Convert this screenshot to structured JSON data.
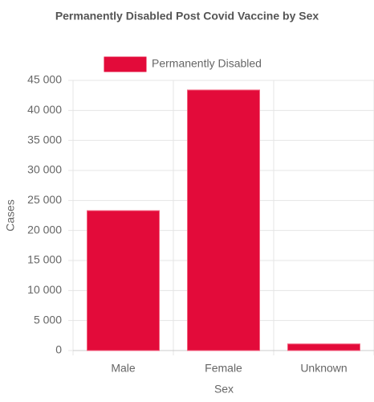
{
  "chart_data": {
    "type": "bar",
    "title": "Permanently Disabled Post Covid Vaccine by Sex",
    "x_label": "Sex",
    "y_label": "Cases",
    "categories": [
      "Male",
      "Female",
      "Unknown"
    ],
    "series": [
      {
        "name": "Permanently Disabled",
        "color": "#e30b3a",
        "values": [
          23300,
          43400,
          1100
        ]
      }
    ],
    "ylim": [
      0,
      45000
    ],
    "yticks": [
      0,
      {
        "value": 5000,
        "label": "5 000"
      },
      {
        "value": 10000,
        "label": "10 000"
      },
      {
        "value": 15000,
        "label": "15 000"
      },
      {
        "value": 20000,
        "label": "20 000"
      },
      {
        "value": 25000,
        "label": "25 000"
      },
      {
        "value": 30000,
        "label": "30 000"
      },
      {
        "value": 35000,
        "label": "35 000"
      },
      {
        "value": 40000,
        "label": "40 000"
      },
      {
        "value": 45000,
        "label": "45 000"
      }
    ],
    "grid": true
  }
}
